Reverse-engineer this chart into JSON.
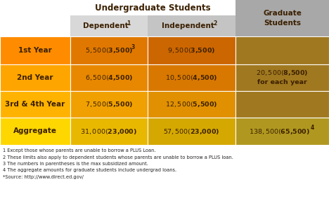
{
  "header_undergrad": "Undergraduate Students",
  "header_dep": "Dependent",
  "header_dep_super": "1",
  "header_indep": "Independent",
  "header_indep_super": "2",
  "header_grad": "Graduate\nStudents",
  "rows": [
    {
      "label": "1st Year",
      "dep": "$5,500 ($3,500)",
      "dep_super": "3",
      "indep": "$9,500 ($3,500)",
      "grad": ""
    },
    {
      "label": "2nd Year",
      "dep": "$6,500 ($4,500)",
      "dep_super": "",
      "indep": "$10,500 ($4,500)",
      "grad": "$20,500 ($8,500)\nfor each year"
    },
    {
      "label": "3rd & 4th Year",
      "dep": "$7,500 ($5,500)",
      "dep_super": "",
      "indep": "$12,500 ($5,500)",
      "grad": ""
    },
    {
      "label": "Aggregate",
      "dep": "$31,000 ($23,000)",
      "dep_super": "",
      "indep": "$57,500 ($23,000)",
      "grad": "$138,500 ($65,500)"
    }
  ],
  "grad_super": "4",
  "footnotes": [
    "1 Except those whose parents are unable to borrow a PLUS Loan.",
    "2 These limits also apply to dependent students whose parents are unable to borrow a PLUS loan.",
    "3 The numbers in parentheses is the max subsidized amount.",
    "4 The aggregate amounts for graduate students include undergrad loans.",
    "*Source: http://www.direct.ed.gov/"
  ],
  "label_colors": [
    "#FF8C00",
    "#FFA500",
    "#FFB300",
    "#FFD700"
  ],
  "dep_colors": [
    "#E07800",
    "#E88800",
    "#F0A000",
    "#E8B800"
  ],
  "indep_colors": [
    "#CC6600",
    "#D87800",
    "#E09000",
    "#D4A800"
  ],
  "grad_colors": [
    "#A07820",
    "#A07820",
    "#A07820",
    "#B09820"
  ],
  "header_dep_bg": "#D8D8D8",
  "header_indep_bg": "#C4C4C4",
  "header_grad_bg": "#A8A8A8",
  "text_color": "#3B2000",
  "footnote_color": "#222222"
}
